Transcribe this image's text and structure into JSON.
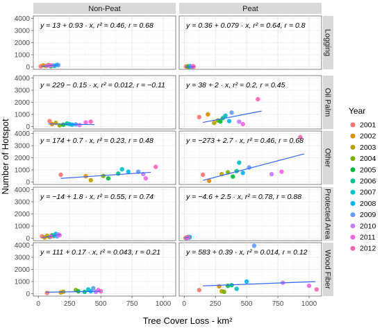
{
  "chart_data": {
    "type": "scatter",
    "xlabel": "Tree Cover Loss - km²",
    "ylabel": "Number of Hotspot",
    "col_facets": [
      "Non-Peat",
      "Peat"
    ],
    "row_facets": [
      "Logging",
      "Oil Palm",
      "Other",
      "Protected Area",
      "Wood Fiber"
    ],
    "x_ticks": [
      0,
      250,
      500,
      750,
      1000
    ],
    "x_tick_labels": [
      "0",
      "250",
      "500",
      "750",
      "1000"
    ],
    "xlim": [
      -40,
      1100
    ],
    "y_ticks": [
      0,
      1000,
      2000,
      3000,
      4000
    ],
    "y_tick_labels": [
      "0",
      "1000",
      "2000",
      "3000",
      "4000"
    ],
    "ylim": [
      -200,
      4200
    ],
    "legend": {
      "title": "Year",
      "position": "right",
      "entries": [
        {
          "label": "2001",
          "color": "#F8766D"
        },
        {
          "label": "2002",
          "color": "#DE8C00"
        },
        {
          "label": "2003",
          "color": "#B79F00"
        },
        {
          "label": "2004",
          "color": "#7CAE00"
        },
        {
          "label": "2005",
          "color": "#00BA38"
        },
        {
          "label": "2006",
          "color": "#00C08B"
        },
        {
          "label": "2007",
          "color": "#00BFC4"
        },
        {
          "label": "2008",
          "color": "#00B4F0"
        },
        {
          "label": "2009",
          "color": "#619CFF"
        },
        {
          "label": "2010",
          "color": "#C77CFF"
        },
        {
          "label": "2011",
          "color": "#F564E3"
        },
        {
          "label": "2012",
          "color": "#FF64B0"
        }
      ]
    },
    "trend_color": "#3366FF",
    "panels": [
      {
        "row": "Logging",
        "col": "Non-Peat",
        "equation": "y = 13 + 0.93 · x,  r² = 0.46,  r = 0.68",
        "trend": {
          "intercept": 13,
          "slope": 0.93,
          "x_range": [
            20,
            160
          ]
        },
        "points": [
          [
            20,
            50
          ],
          [
            40,
            130
          ],
          [
            60,
            80
          ],
          [
            80,
            150
          ],
          [
            100,
            60
          ],
          [
            120,
            110
          ],
          [
            130,
            90
          ],
          [
            150,
            170
          ],
          [
            160,
            150
          ],
          [
            110,
            120
          ],
          [
            70,
            100
          ],
          [
            90,
            140
          ]
        ]
      },
      {
        "row": "Logging",
        "col": "Peat",
        "equation": "y = 0.36 + 0.079 · x,  r² = 0.64,  r = 0.8",
        "trend": {
          "intercept": 0.36,
          "slope": 0.079,
          "x_range": [
            10,
            80
          ]
        },
        "points": [
          [
            15,
            30
          ],
          [
            25,
            20
          ],
          [
            30,
            50
          ],
          [
            35,
            10
          ],
          [
            40,
            40
          ],
          [
            45,
            20
          ],
          [
            50,
            60
          ],
          [
            55,
            30
          ],
          [
            60,
            20
          ],
          [
            65,
            10
          ],
          [
            70,
            50
          ],
          [
            75,
            25
          ]
        ]
      },
      {
        "row": "Oil Palm",
        "col": "Non-Peat",
        "equation": "y = 229 − 0.15 · x,  r² = 0.012,  r = −0.11",
        "trend": {
          "intercept": 229,
          "slope": -0.15,
          "x_range": [
            80,
            450
          ]
        },
        "points": [
          [
            90,
            450
          ],
          [
            110,
            200
          ],
          [
            140,
            300
          ],
          [
            170,
            100
          ],
          [
            200,
            150
          ],
          [
            230,
            250
          ],
          [
            250,
            200
          ],
          [
            270,
            150
          ],
          [
            300,
            180
          ],
          [
            330,
            120
          ],
          [
            380,
            340
          ],
          [
            420,
            400
          ]
        ]
      },
      {
        "row": "Oil Palm",
        "col": "Peat",
        "equation": "y = 38 + 2 · x,  r² = 0.2,  r = 0.45",
        "trend": {
          "intercept": 38,
          "slope": 2,
          "x_range": [
            150,
            620
          ]
        },
        "points": [
          [
            120,
            780
          ],
          [
            190,
            1000
          ],
          [
            240,
            300
          ],
          [
            270,
            500
          ],
          [
            290,
            420
          ],
          [
            310,
            700
          ],
          [
            330,
            900
          ],
          [
            360,
            450
          ],
          [
            380,
            1150
          ],
          [
            440,
            400
          ],
          [
            470,
            200
          ],
          [
            590,
            2250
          ]
        ]
      },
      {
        "row": "Other",
        "col": "Non-Peat",
        "equation": "y = 174 + 0.7 · x,  r² = 0.23,  r = 0.48",
        "trend": {
          "intercept": 174,
          "slope": 0.7,
          "x_range": [
            180,
            900
          ]
        },
        "points": [
          [
            180,
            600
          ],
          [
            380,
            480
          ],
          [
            420,
            150
          ],
          [
            520,
            500
          ],
          [
            560,
            300
          ],
          [
            640,
            700
          ],
          [
            670,
            1050
          ],
          [
            720,
            850
          ],
          [
            800,
            850
          ],
          [
            840,
            650
          ],
          [
            860,
            300
          ],
          [
            940,
            1250
          ]
        ]
      },
      {
        "row": "Other",
        "col": "Peat",
        "equation": "y = −273 + 2.7 · x,  r² = 0.46,  r = 0.68",
        "trend": {
          "intercept": -273,
          "slope": 2.7,
          "x_range": [
            150,
            960
          ]
        },
        "points": [
          [
            150,
            600
          ],
          [
            200,
            100
          ],
          [
            300,
            650
          ],
          [
            350,
            800
          ],
          [
            390,
            450
          ],
          [
            420,
            900
          ],
          [
            440,
            1600
          ],
          [
            470,
            750
          ],
          [
            520,
            1200
          ],
          [
            700,
            650
          ],
          [
            780,
            850
          ],
          [
            930,
            3700
          ]
        ]
      },
      {
        "row": "Protected Area",
        "col": "Non-Peat",
        "equation": "y = −14 + 1.8 · x,  r² = 0.55,  r = 0.74",
        "trend": {
          "intercept": -14,
          "slope": 1.8,
          "x_range": [
            30,
            180
          ]
        },
        "points": [
          [
            30,
            150
          ],
          [
            50,
            60
          ],
          [
            70,
            200
          ],
          [
            90,
            100
          ],
          [
            110,
            240
          ],
          [
            120,
            180
          ],
          [
            130,
            260
          ],
          [
            140,
            350
          ],
          [
            150,
            150
          ],
          [
            160,
            300
          ],
          [
            170,
            250
          ],
          [
            100,
            130
          ]
        ]
      },
      {
        "row": "Protected Area",
        "col": "Peat",
        "equation": "y = −4.6 + 2.5 · x,  r² = 0.78,  r = 0.88",
        "trend": {
          "intercept": -4.6,
          "slope": 2.5,
          "x_range": [
            5,
            40
          ]
        },
        "points": [
          [
            10,
            20
          ],
          [
            15,
            30
          ],
          [
            20,
            60
          ],
          [
            25,
            40
          ],
          [
            30,
            80
          ],
          [
            35,
            100
          ],
          [
            40,
            50
          ],
          [
            45,
            90
          ],
          [
            18,
            10
          ],
          [
            22,
            25
          ],
          [
            28,
            45
          ],
          [
            33,
            70
          ]
        ]
      },
      {
        "row": "Wood Fiber",
        "col": "Non-Peat",
        "equation": "y = 111 + 0.17 · x,  r² = 0.043,  r = 0.21",
        "trend": {
          "intercept": 111,
          "slope": 0.17,
          "x_range": [
            60,
            500
          ]
        },
        "points": [
          [
            70,
            60
          ],
          [
            180,
            100
          ],
          [
            200,
            160
          ],
          [
            300,
            300
          ],
          [
            320,
            200
          ],
          [
            370,
            150
          ],
          [
            400,
            350
          ],
          [
            420,
            200
          ],
          [
            440,
            450
          ],
          [
            460,
            150
          ],
          [
            480,
            300
          ],
          [
            500,
            200
          ]
        ]
      },
      {
        "row": "Wood Fiber",
        "col": "Peat",
        "equation": "y = 583 + 0.39 · x,  r² = 0.014,  r = 0.12",
        "trend": {
          "intercept": 583,
          "slope": 0.39,
          "x_range": [
            150,
            1050
          ]
        },
        "points": [
          [
            120,
            300
          ],
          [
            280,
            600
          ],
          [
            300,
            200
          ],
          [
            320,
            150
          ],
          [
            350,
            650
          ],
          [
            380,
            700
          ],
          [
            420,
            400
          ],
          [
            500,
            1000
          ],
          [
            560,
            3950
          ],
          [
            790,
            900
          ],
          [
            1000,
            650
          ],
          [
            1060,
            350
          ]
        ]
      }
    ]
  }
}
